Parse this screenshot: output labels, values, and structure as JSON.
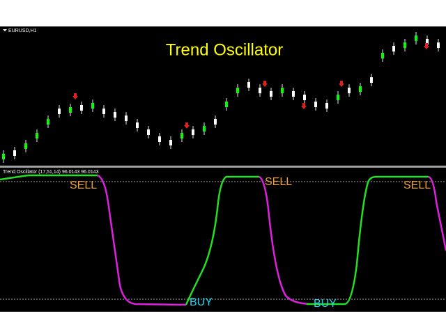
{
  "window": {
    "symbol": "EURUSD,H1",
    "title": "Trend Oscillator"
  },
  "indicator": {
    "label": "Trend Oscillator (17,51,14) 96.0143 96.0143",
    "signals": [
      {
        "text": "SELL"
      },
      {
        "text": "SELL"
      },
      {
        "text": "SELL"
      },
      {
        "text": "BUY"
      },
      {
        "text": "BUY"
      }
    ]
  }
}
